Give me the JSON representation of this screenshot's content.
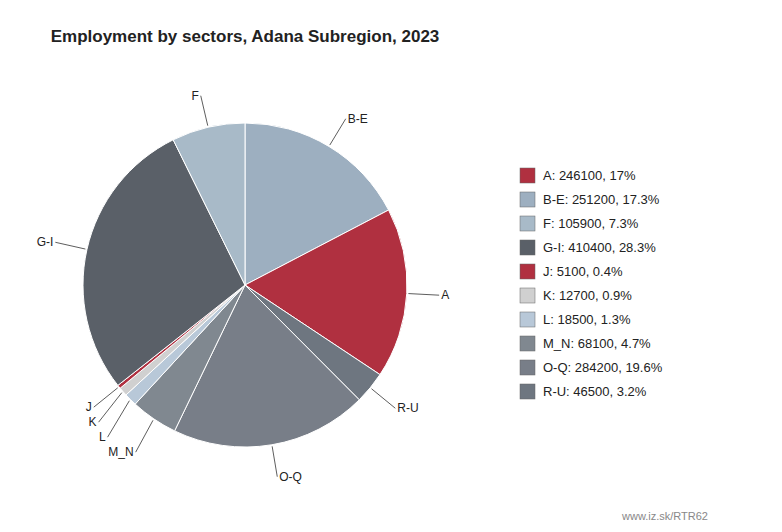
{
  "chart_data": {
    "type": "pie",
    "title": "Employment by sectors, Adana Subregion, 2023",
    "categories": [
      "B-E",
      "A",
      "R-U",
      "O-Q",
      "M_N",
      "L",
      "K",
      "J",
      "G-I",
      "F"
    ],
    "values": [
      251200,
      246100,
      46500,
      284200,
      68100,
      18500,
      12700,
      5100,
      410400,
      105900
    ],
    "colors": [
      "#9dafc0",
      "#b03040",
      "#6e7680",
      "#787e88",
      "#808890",
      "#b8c8d8",
      "#d0d0d0",
      "#b03040",
      "#5a6068",
      "#a8bac8"
    ],
    "legend_labels": [
      "B-E: 251200, 17.3%",
      "A: 246100, 17%",
      "R-U: 46500, 3.2%",
      "O-Q: 284200, 19.6%",
      "M_N: 68100, 4.7%",
      "L: 18500, 1.3%",
      "K: 12700, 0.9%",
      "J: 5100, 0.4%",
      "G-I: 410400, 28.3%",
      "F: 105900, 7.3%"
    ],
    "legend": "right",
    "annotations": [
      "www.iz.sk/RTR62"
    ]
  }
}
